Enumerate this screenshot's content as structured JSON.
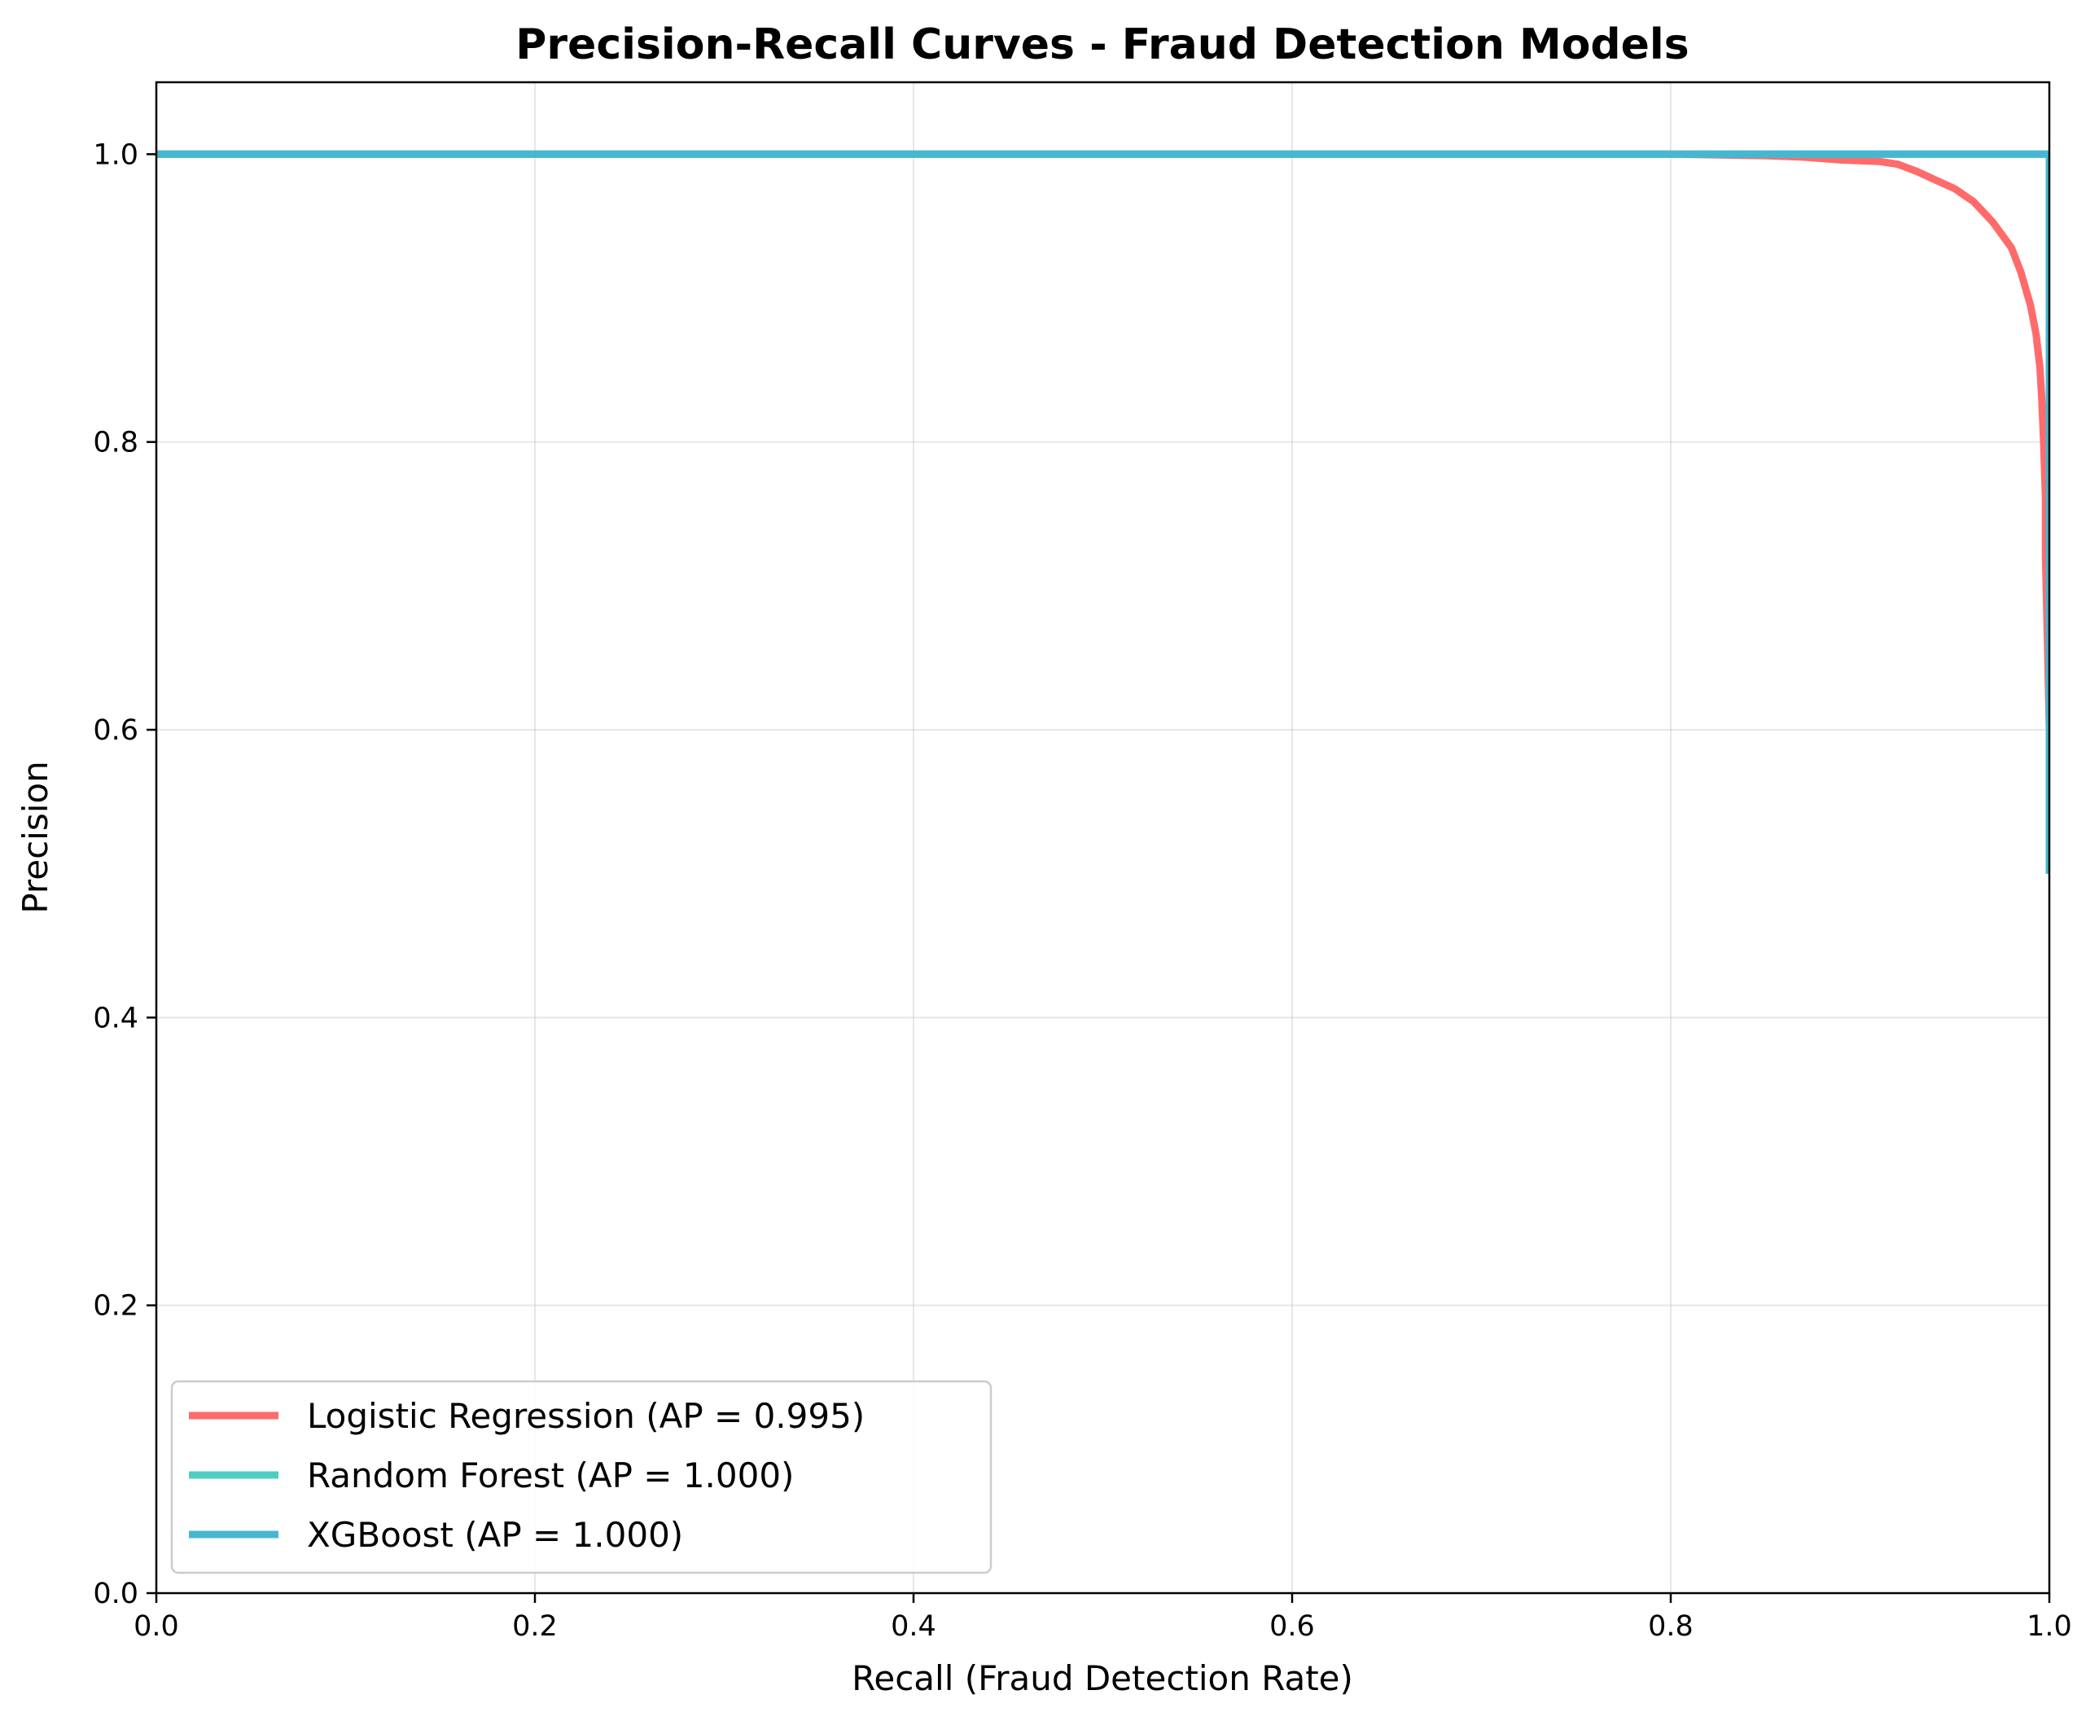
{
  "chart_data": {
    "type": "line",
    "title": "Precision-Recall Curves - Fraud Detection Models",
    "xlabel": "Recall (Fraud Detection Rate)",
    "ylabel": "Precision",
    "xlim": [
      0.0,
      1.0
    ],
    "ylim": [
      0.0,
      1.05
    ],
    "xticks": [
      0.0,
      0.2,
      0.4,
      0.6,
      0.8,
      1.0
    ],
    "xtick_labels": [
      "0.0",
      "0.2",
      "0.4",
      "0.6",
      "0.8",
      "1.0"
    ],
    "yticks": [
      0.0,
      0.2,
      0.4,
      0.6,
      0.8,
      1.0
    ],
    "ytick_labels": [
      "0.0",
      "0.2",
      "0.4",
      "0.6",
      "0.8",
      "1.0"
    ],
    "grid": true,
    "legend_position": "lower-left",
    "series": [
      {
        "name": "Logistic Regression (AP = 0.995)",
        "color": "#FF6B6B",
        "x": [
          0.0,
          0.1,
          0.2,
          0.3,
          0.4,
          0.5,
          0.6,
          0.7,
          0.8,
          0.85,
          0.87,
          0.89,
          0.91,
          0.92,
          0.93,
          0.94,
          0.95,
          0.96,
          0.97,
          0.98,
          0.985,
          0.99,
          0.993,
          0.995,
          0.996,
          0.997,
          0.998,
          0.998,
          0.999,
          1.0
        ],
        "y": [
          1.0,
          1.0,
          1.0,
          1.0,
          1.0,
          1.0,
          1.0,
          1.0,
          1.0,
          0.999,
          0.998,
          0.996,
          0.995,
          0.993,
          0.988,
          0.982,
          0.976,
          0.967,
          0.953,
          0.935,
          0.918,
          0.895,
          0.875,
          0.852,
          0.83,
          0.8,
          0.76,
          0.72,
          0.66,
          0.6
        ]
      },
      {
        "name": "Random Forest (AP = 1.000)",
        "color": "#4ECDC4",
        "x": [
          0.0,
          0.2,
          0.4,
          0.6,
          0.8,
          0.99,
          0.998,
          1.0,
          1.0
        ],
        "y": [
          1.0,
          1.0,
          1.0,
          1.0,
          1.0,
          1.0,
          1.0,
          1.0,
          0.5
        ]
      },
      {
        "name": "XGBoost (AP = 1.000)",
        "color": "#45B7D1",
        "x": [
          0.0,
          0.2,
          0.4,
          0.6,
          0.8,
          0.99,
          0.998,
          1.0,
          1.0
        ],
        "y": [
          1.0,
          1.0,
          1.0,
          1.0,
          1.0,
          1.0,
          1.0,
          1.0,
          0.5
        ]
      }
    ]
  }
}
